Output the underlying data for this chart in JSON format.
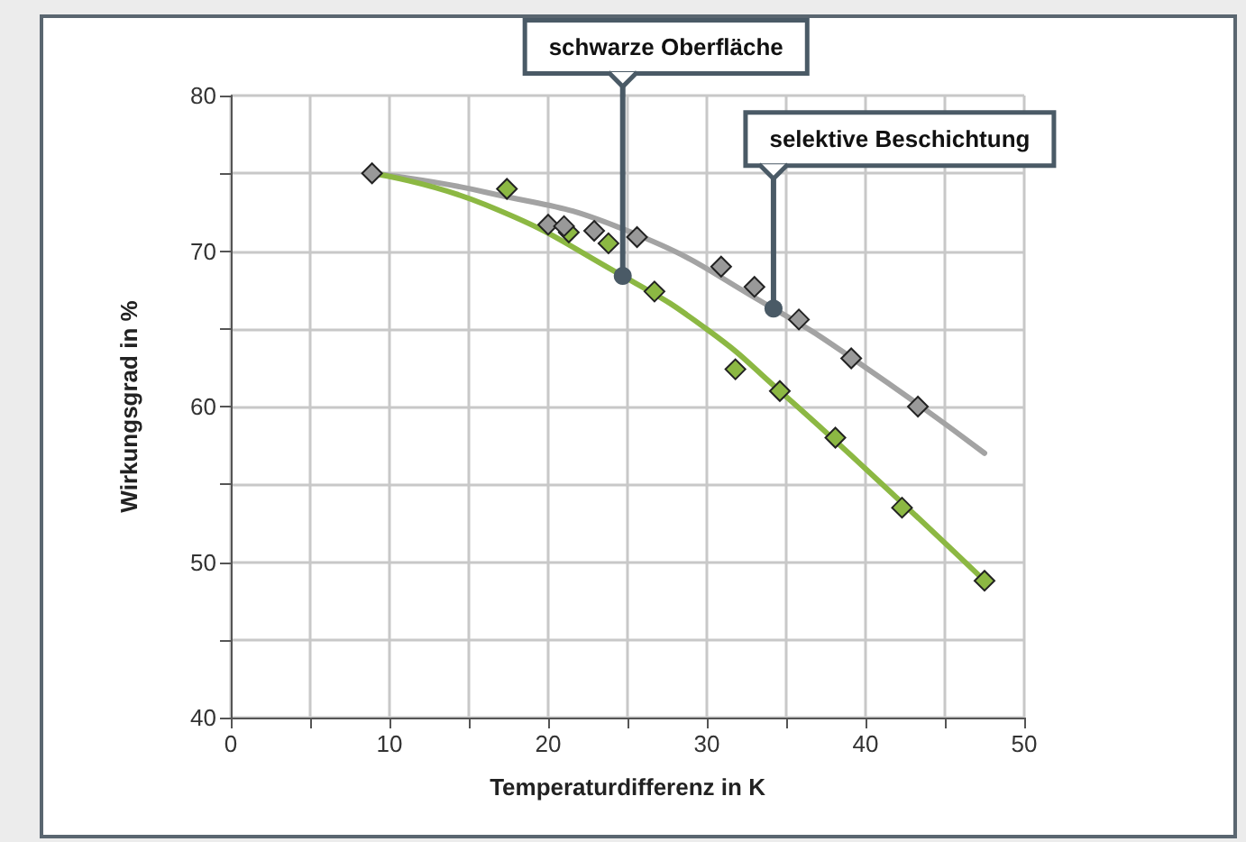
{
  "chart_data": {
    "type": "scatter",
    "xlabel": "Temperaturdifferenz in K",
    "ylabel": "Wirkungsgrad in %",
    "xlim": [
      0,
      50
    ],
    "xticks": [
      0,
      {
        "value": 5,
        "label": null
      },
      10,
      {
        "value": 15,
        "label": null
      },
      20,
      {
        "value": 25,
        "label": null
      },
      30,
      {
        "value": 35,
        "label": null
      },
      40,
      {
        "value": 45,
        "label": null
      },
      50
    ],
    "ylim": [
      40,
      80
    ],
    "yticks": [
      40,
      {
        "value": 45,
        "label": null
      },
      50,
      {
        "value": 55,
        "label": null
      },
      60,
      {
        "value": 65,
        "label": null
      },
      70,
      {
        "value": 75,
        "label": null
      },
      80
    ],
    "grid": true,
    "marker": "diamond",
    "series": [
      {
        "type": "line",
        "marker": "none",
        "color": "#a3a3a3",
        "x": [
          8.9,
          16,
          25,
          34.2,
          39.6,
          47.5
        ],
        "values": [
          75,
          73.8,
          71.3,
          66.3,
          62.8,
          57
        ]
      },
      {
        "type": "line",
        "marker": "none",
        "color": "#8cb843",
        "x": [
          8.9,
          16,
          24.7,
          30.1,
          34.6,
          40,
          47.5
        ],
        "values": [
          75,
          73,
          68.4,
          64.9,
          61,
          56,
          48.8
        ]
      },
      {
        "color": "#8cb843",
        "x": [
          17.4,
          21.3,
          23.8,
          26.7,
          31.8,
          34.6,
          38.1,
          42.3,
          47.5
        ],
        "values": [
          74,
          71.2,
          70.5,
          67.4,
          62.4,
          61,
          58,
          53.5,
          48.8
        ]
      },
      {
        "color": "#999999",
        "x": [
          8.9,
          20,
          21,
          22.9,
          25.6,
          30.9,
          33,
          35.8,
          39.1,
          43.3
        ],
        "values": [
          75,
          71.7,
          71.6,
          71.3,
          70.9,
          69,
          67.7,
          65.6,
          63.1,
          60
        ]
      }
    ],
    "annotations": [
      {
        "text": "schwarze Oberfläche",
        "x": 24.7,
        "y": 68.4
      },
      {
        "text": "selektive Beschichtung",
        "x": 34.2,
        "y": 66.3
      }
    ]
  }
}
